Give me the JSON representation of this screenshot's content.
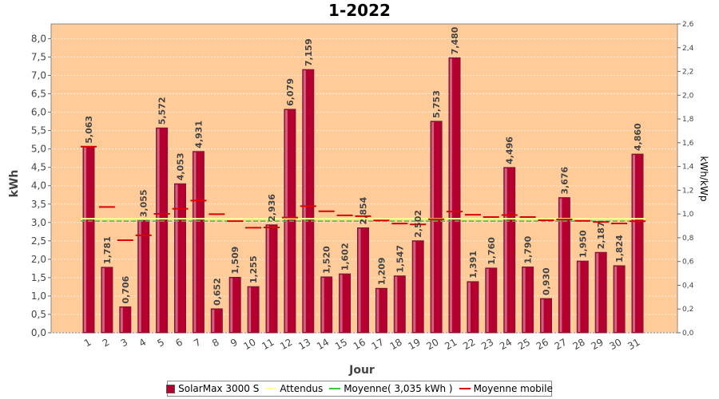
{
  "chart_data": {
    "type": "bar",
    "title": "1-2022",
    "xlabel": "Jour",
    "ylabel": "kWh",
    "ylabel_right": "kWh/kWp",
    "ylim": [
      0,
      8.4
    ],
    "ylim_right": [
      0,
      2.6
    ],
    "yticks": [
      "0,0",
      "0,5",
      "1,0",
      "1,5",
      "2,0",
      "2,5",
      "3,0",
      "3,5",
      "4,0",
      "4,5",
      "5,0",
      "5,5",
      "6,0",
      "6,5",
      "7,0",
      "7,5",
      "8,0"
    ],
    "yticks_right": [
      "0,0",
      "0,2",
      "0,4",
      "0,6",
      "0,8",
      "1,0",
      "1,2",
      "1,4",
      "1,6",
      "1,8",
      "2,0",
      "2,2",
      "2,4",
      "2,6"
    ],
    "categories": [
      "1",
      "2",
      "3",
      "4",
      "5",
      "6",
      "7",
      "8",
      "9",
      "10",
      "11",
      "12",
      "13",
      "14",
      "15",
      "16",
      "17",
      "18",
      "19",
      "20",
      "21",
      "22",
      "23",
      "24",
      "25",
      "26",
      "27",
      "28",
      "29",
      "30",
      "31"
    ],
    "series": [
      {
        "name": "SolarMax 3000 S",
        "values": [
          5.063,
          1.781,
          0.706,
          3.055,
          5.572,
          4.053,
          4.931,
          0.652,
          1.509,
          1.255,
          2.936,
          6.079,
          7.159,
          1.52,
          1.602,
          2.854,
          1.209,
          1.547,
          2.502,
          5.753,
          7.48,
          1.391,
          1.76,
          4.496,
          1.79,
          0.93,
          3.676,
          1.95,
          2.187,
          1.824,
          4.86
        ],
        "labels": [
          "5,063",
          "1,781",
          "0,706",
          "3,055",
          "5,572",
          "4,053",
          "4,931",
          "0,652",
          "1,509",
          "1,255",
          "2,936",
          "6,079",
          "7,159",
          "1,520",
          "1,602",
          "2,854",
          "1,209",
          "1,547",
          "2,502",
          "5,753",
          "7,480",
          "1,391",
          "1,760",
          "4,496",
          "1,790",
          "0,930",
          "3,676",
          "1,950",
          "2,187",
          "1,824",
          "4,860"
        ],
        "color": "#b5002f"
      },
      {
        "name": "Attendus",
        "value": 3.1,
        "color": "#ffff99"
      },
      {
        "name": "Moyenne( 3,035 kWh )",
        "value": 3.035,
        "color": "#33cc33"
      },
      {
        "name": "Moyenne mobile",
        "values": [
          5.063,
          3.422,
          2.517,
          2.651,
          3.235,
          3.372,
          3.595,
          3.227,
          3.036,
          2.858,
          2.865,
          3.133,
          3.443,
          3.306,
          3.193,
          3.172,
          3.056,
          2.972,
          2.947,
          3.087,
          3.296,
          3.209,
          3.146,
          3.202,
          3.146,
          3.06,
          3.083,
          3.043,
          3.013,
          2.973,
          3.034
        ],
        "color": "#dd0000"
      }
    ],
    "grid": true,
    "legend_position": "bottom",
    "colors": {
      "plot_background": "#ffcc99",
      "bar": "#b5002f"
    }
  }
}
